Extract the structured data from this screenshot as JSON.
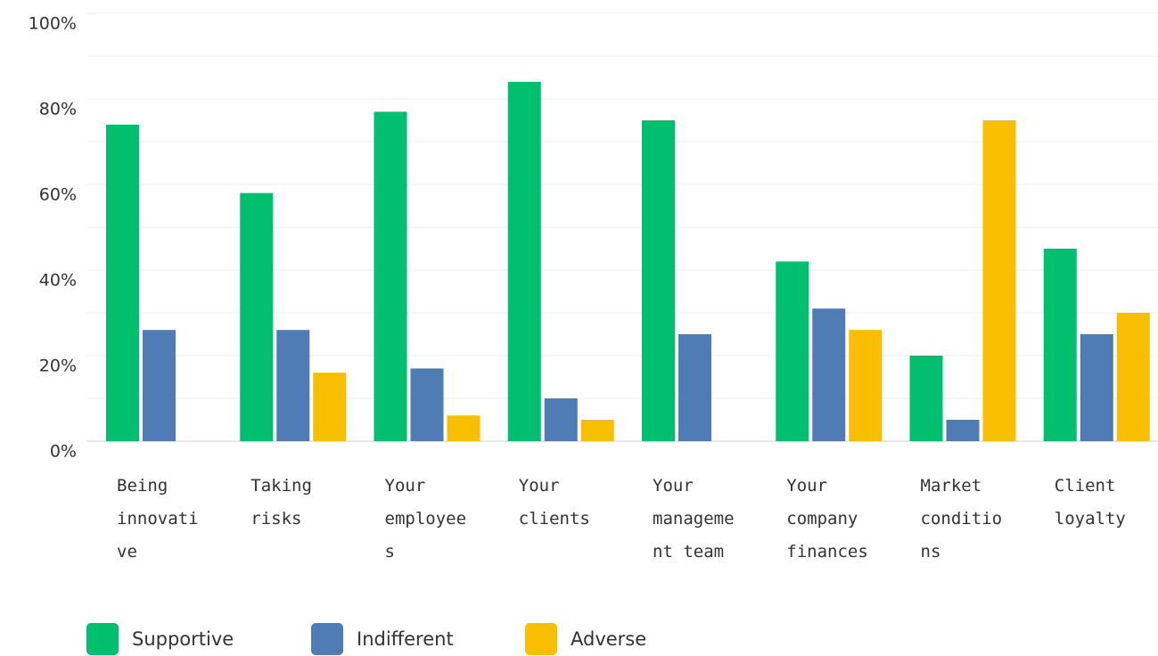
{
  "chart_data": {
    "type": "bar",
    "categories": [
      "Being innovative",
      "Taking risks",
      "Your employees",
      "Your clients",
      "Your management team",
      "Your company finances",
      "Market conditions",
      "Client loyalty"
    ],
    "series": [
      {
        "name": "Supportive",
        "color": "#00bf6f",
        "values": [
          74,
          58,
          77,
          84,
          75,
          42,
          20,
          45
        ]
      },
      {
        "name": "Indifferent",
        "color": "#507cb6",
        "values": [
          26,
          26,
          17,
          10,
          25,
          31,
          5,
          25
        ]
      },
      {
        "name": "Adverse",
        "color": "#f9be00",
        "values": [
          0,
          16,
          6,
          5,
          0,
          26,
          75,
          30
        ]
      }
    ],
    "ylim": [
      0,
      100
    ],
    "yticks": [
      {
        "value": 0,
        "label": "0%"
      },
      {
        "value": 20,
        "label": "20%"
      },
      {
        "value": 40,
        "label": "40%"
      },
      {
        "value": 60,
        "label": "60%"
      },
      {
        "value": 80,
        "label": "80%"
      },
      {
        "value": 100,
        "label": "100%"
      }
    ],
    "minor_yticks": [
      10,
      30,
      50,
      70,
      90
    ],
    "grid": true
  }
}
